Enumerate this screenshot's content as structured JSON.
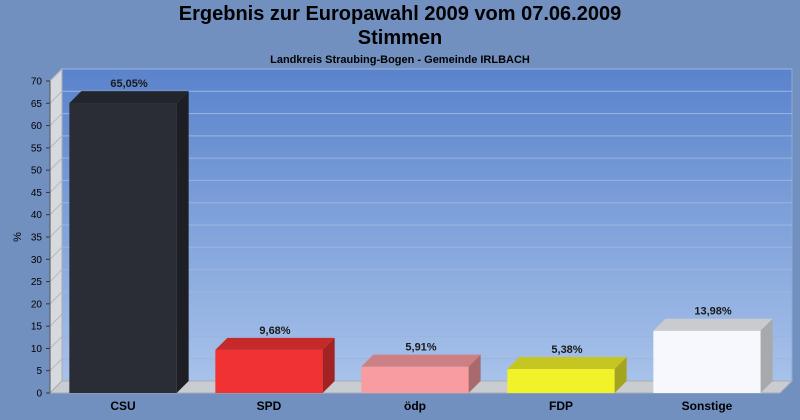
{
  "chart_data": {
    "type": "bar",
    "title": "Ergebnis zur Europawahl 2009 vom 07.06.2009",
    "subtitle": "Stimmen",
    "caption": "Landkreis Straubing-Bogen - Gemeinde IRLBACH",
    "ylabel": "%",
    "xlabel": "",
    "ylim": [
      0,
      70
    ],
    "yticks": [
      0,
      5,
      10,
      15,
      20,
      25,
      30,
      35,
      40,
      45,
      50,
      55,
      60,
      65,
      70
    ],
    "grid": true,
    "categories": [
      "CSU",
      "SPD",
      "ödp",
      "FDP",
      "Sonstige"
    ],
    "values": [
      65.05,
      9.68,
      5.91,
      5.38,
      13.98
    ],
    "value_labels": [
      "65,05%",
      "9,68%",
      "5,91%",
      "5,38%",
      "13,98%"
    ],
    "colors": [
      "#2a2d35",
      "#f03232",
      "#f99ca0",
      "#f2f22a",
      "#f6f8fd"
    ]
  }
}
